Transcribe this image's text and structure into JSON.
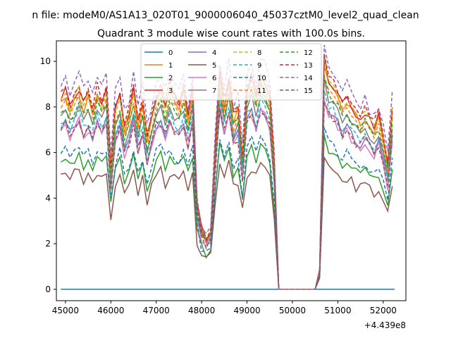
{
  "figure": {
    "suptitle": "n file: modeM0/AS1A13_020T01_9000006040_45037cztM0_level2_quad_clean",
    "offset_label": "+4.439e8"
  },
  "chart_data": {
    "type": "line",
    "title": "Quadrant 3 module wise count rates with 100.0s bins.",
    "xlabel": "",
    "ylabel": "",
    "x_offset": 443900000,
    "xlim": [
      44800,
      52500
    ],
    "ylim": [
      -0.5,
      10.9
    ],
    "x_ticks": [
      45000,
      46000,
      47000,
      48000,
      49000,
      50000,
      51000,
      52000
    ],
    "x_tick_labels": [
      "45000",
      "46000",
      "47000",
      "48000",
      "49000",
      "50000",
      "51000",
      "52000"
    ],
    "y_ticks": [
      0,
      2,
      4,
      6,
      8,
      10
    ],
    "y_tick_labels": [
      "0",
      "2",
      "4",
      "6",
      "8",
      "10"
    ],
    "grid": false,
    "legend": {
      "placement": "top-center",
      "columns": 4
    },
    "profile": {
      "comment_free_shape_points": true,
      "x": [
        44900,
        45000,
        45100,
        45200,
        45300,
        45400,
        45500,
        45600,
        45700,
        45800,
        45900,
        46000,
        46100,
        46200,
        46300,
        46400,
        46500,
        46600,
        46700,
        46800,
        46900,
        47000,
        47100,
        47200,
        47300,
        47400,
        47500,
        47600,
        47700,
        47800,
        47900,
        48000,
        48100,
        48200,
        48300,
        48400,
        48500,
        48600,
        48700,
        48800,
        48900,
        49000,
        49100,
        49200,
        49300,
        49400,
        49500,
        49600,
        49700,
        49800,
        49900,
        50000,
        50100,
        50200,
        50300,
        50400,
        50500,
        50600,
        50700,
        50800,
        50900,
        51000,
        51100,
        51200,
        51300,
        51400,
        51500,
        51600,
        51700,
        51800,
        51900,
        52000,
        52100,
        52200,
        52250
      ],
      "shape": [
        0,
        0.03,
        -0.04,
        0.02,
        0.05,
        -0.03,
        0.01,
        -0.05,
        0.04,
        -0.02,
        0.03,
        -0.35,
        -0.05,
        0.02,
        -0.15,
        -0.08,
        0.03,
        -0.12,
        -0.02,
        -0.2,
        -0.1,
        0.02,
        0.05,
        -0.04,
        0.06,
        0.0,
        -0.03,
        0.04,
        -0.1,
        0.05,
        -0.55,
        -0.68,
        -0.73,
        -0.7,
        -0.25,
        0.12,
        -0.02,
        0.1,
        -0.1,
        -0.05,
        -0.3,
        0.05,
        0.1,
        0.0,
        0.12,
        0.08,
        0.0,
        -0.35,
        -1,
        -1,
        -1,
        -1,
        -1,
        -1,
        -1,
        -1,
        -1,
        -0.9,
        0.2,
        0.1,
        0.07,
        0.02,
        -0.03,
        0.0,
        -0.05,
        -0.08,
        -0.1,
        -0.07,
        -0.12,
        -0.15,
        -0.1,
        -0.2,
        -0.35,
        -0.05
      ]
    },
    "series": [
      {
        "name": "0",
        "color": "#1f77b4",
        "dash": "solid",
        "level": 0.0,
        "jitter": 0.0,
        "constant": 0.0
      },
      {
        "name": "1",
        "color": "#ff7f0e",
        "dash": "solid",
        "level": 8.2,
        "jitter": 0.25
      },
      {
        "name": "2",
        "color": "#2ca02c",
        "dash": "solid",
        "level": 5.6,
        "jitter": 0.2
      },
      {
        "name": "3",
        "color": "#d62728",
        "dash": "solid",
        "level": 8.4,
        "jitter": 0.25
      },
      {
        "name": "4",
        "color": "#9467bd",
        "dash": "solid",
        "level": 7.1,
        "jitter": 0.25
      },
      {
        "name": "5",
        "color": "#8c564b",
        "dash": "solid",
        "level": 4.9,
        "jitter": 0.3
      },
      {
        "name": "6",
        "color": "#e377c2",
        "dash": "solid",
        "level": 7.0,
        "jitter": 0.25
      },
      {
        "name": "7",
        "color": "#7f7f7f",
        "dash": "solid",
        "level": 7.6,
        "jitter": 0.25
      },
      {
        "name": "8",
        "color": "#bcbd22",
        "dash": "dashed",
        "level": 8.3,
        "jitter": 0.25
      },
      {
        "name": "9",
        "color": "#17becf",
        "dash": "dashed",
        "level": 7.3,
        "jitter": 0.25
      },
      {
        "name": "10",
        "color": "#1f77b4",
        "dash": "dashed",
        "level": 5.9,
        "jitter": 0.25
      },
      {
        "name": "11",
        "color": "#ff7f0e",
        "dash": "dashed",
        "level": 7.9,
        "jitter": 0.25
      },
      {
        "name": "12",
        "color": "#2ca02c",
        "dash": "dashed",
        "level": 7.8,
        "jitter": 0.25
      },
      {
        "name": "13",
        "color": "#d62728",
        "dash": "dashed",
        "level": 8.5,
        "jitter": 0.25
      },
      {
        "name": "14",
        "color": "#9467bd",
        "dash": "dashed",
        "level": 9.0,
        "jitter": 0.3
      },
      {
        "name": "15",
        "color": "#8c564b",
        "dash": "dashed",
        "level": 7.0,
        "jitter": 0.25
      }
    ]
  }
}
